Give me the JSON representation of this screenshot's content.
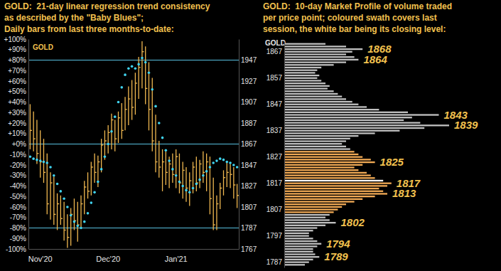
{
  "chart_data": [
    {
      "type": "hlc",
      "title": "GOLD:  21-day linear regression trend consistency",
      "subtitle": [
        "as described by the \"Baby Blues\";",
        "Daily bars from last three months-to-date:"
      ],
      "label": "GOLD",
      "categories": [
        null,
        null,
        null,
        "Nov'20",
        null,
        null,
        null,
        null,
        null,
        null,
        null,
        null,
        null,
        null,
        null,
        null,
        null,
        null,
        null,
        null,
        null,
        null,
        null,
        "Dec'20",
        null,
        null,
        null,
        null,
        null,
        null,
        null,
        null,
        null,
        null,
        null,
        null,
        null,
        null,
        null,
        null,
        null,
        null,
        null,
        "Jan'21",
        null,
        null,
        null,
        null,
        null,
        null,
        null,
        null,
        null,
        null,
        null,
        null,
        null,
        null,
        null,
        null,
        null,
        null
      ],
      "series": [
        {
          "type": "hlc",
          "axis": "y2",
          "color": "#f0b850",
          "high": [
            1905,
            1898,
            1890,
            1880,
            1872,
            1858,
            1840,
            1836,
            1820,
            1818,
            1812,
            1800,
            1806,
            1815,
            1812,
            1818,
            1832,
            1840,
            1850,
            1858,
            1856,
            1872,
            1880,
            1885,
            1896,
            1890,
            1898,
            1906,
            1912,
            1922,
            1928,
            1935,
            1950,
            1965,
            1960,
            1945,
            1930,
            1895,
            1870,
            1862,
            1860,
            1855,
            1858,
            1862,
            1858,
            1850,
            1845,
            1840,
            1850,
            1855,
            1852,
            1860,
            1858,
            1855,
            1835,
            1818,
            1830,
            1842,
            1850,
            1848,
            1845,
            1829
          ],
          "low": [
            1862,
            1860,
            1848,
            1835,
            1830,
            1800,
            1795,
            1790,
            1785,
            1790,
            1775,
            1768,
            1770,
            1785,
            1774,
            1788,
            1800,
            1815,
            1818,
            1830,
            1826,
            1840,
            1852,
            1858,
            1862,
            1860,
            1868,
            1872,
            1880,
            1885,
            1890,
            1895,
            1910,
            1920,
            1905,
            1880,
            1860,
            1840,
            1835,
            1822,
            1828,
            1825,
            1830,
            1825,
            1820,
            1815,
            1812,
            1808,
            1820,
            1822,
            1825,
            1830,
            1822,
            1800,
            1785,
            1785,
            1805,
            1818,
            1826,
            1825,
            1815,
            1806
          ],
          "close": [
            1880,
            1872,
            1858,
            1850,
            1840,
            1810,
            1830,
            1800,
            1810,
            1796,
            1785,
            1778,
            1800,
            1794,
            1790,
            1810,
            1826,
            1822,
            1845,
            1840,
            1850,
            1866,
            1870,
            1878,
            1890,
            1872,
            1892,
            1880,
            1900,
            1910,
            1902,
            1925,
            1940,
            1955,
            1920,
            1900,
            1870,
            1850,
            1845,
            1850,
            1840,
            1848,
            1838,
            1855,
            1830,
            1842,
            1825,
            1832,
            1845,
            1830,
            1848,
            1840,
            1850,
            1815,
            1790,
            1810,
            1825,
            1835,
            1840,
            1838,
            1828,
            1818
          ]
        },
        {
          "type": "scatter",
          "marker": "circle",
          "color": "#40d4f0",
          "values": [
            -12,
            -14,
            -15,
            -16,
            -17,
            -18,
            -22,
            -30,
            -38,
            -45,
            -52,
            -60,
            -68,
            -74,
            -78,
            -80,
            -74,
            -66,
            -56,
            -46,
            -36,
            -24,
            -12,
            0,
            12,
            26,
            40,
            54,
            66,
            72,
            74,
            72,
            76,
            82,
            78,
            68,
            52,
            36,
            20,
            6,
            -6,
            -16,
            -24,
            -30,
            -36,
            -40,
            -44,
            -46,
            -42,
            -38,
            -34,
            -30,
            -26,
            -22,
            -18,
            -16,
            -14,
            -15,
            -17,
            -18,
            -20,
            -22
          ]
        }
      ],
      "hlines": [
        80,
        0,
        -80
      ],
      "ylim": [
        -100,
        100
      ],
      "yticks": [
        {
          "value": 100,
          "label": "+100%"
        },
        {
          "value": 90,
          "label": "+90%"
        },
        {
          "value": 80,
          "label": "+80%"
        },
        {
          "value": 70,
          "label": "+70%"
        },
        {
          "value": 60,
          "label": "+60%"
        },
        {
          "value": 50,
          "label": "+50%"
        },
        {
          "value": 40,
          "label": "+40%"
        },
        {
          "value": 30,
          "label": "+30%"
        },
        {
          "value": 20,
          "label": "+20%"
        },
        {
          "value": 10,
          "label": "+10%"
        },
        {
          "value": 0,
          "label": "+0%"
        },
        {
          "value": -10,
          "label": "-10%"
        },
        {
          "value": -20,
          "label": "-20%"
        },
        {
          "value": -30,
          "label": "-30%"
        },
        {
          "value": -40,
          "label": "-40%"
        },
        {
          "value": -50,
          "label": "-50%"
        },
        {
          "value": -60,
          "label": "-60%"
        },
        {
          "value": -70,
          "label": "-70%"
        },
        {
          "value": -80,
          "label": "-80%"
        },
        {
          "value": -90,
          "label": "-90%"
        },
        {
          "value": -100,
          "label": "-100%"
        }
      ],
      "y2lim": [
        1767,
        1967
      ],
      "y2ticks": [
        1767,
        1787,
        1807,
        1827,
        1847,
        1867,
        1887,
        1907,
        1927,
        1947
      ],
      "grid": false
    },
    {
      "type": "bar",
      "orientation": "horizontal",
      "title": "GOLD:  10-day Market Profile of volume traded",
      "subtitle": [
        "per price point; coloured swath covers last",
        "session, the white bar being its closing level:"
      ],
      "label": "GOLD",
      "y": [
        1786,
        1787,
        1788,
        1789,
        1790,
        1791,
        1792,
        1793,
        1794,
        1795,
        1796,
        1797,
        1798,
        1799,
        1800,
        1801,
        1802,
        1803,
        1804,
        1805,
        1806,
        1807,
        1808,
        1809,
        1810,
        1811,
        1812,
        1813,
        1814,
        1815,
        1816,
        1817,
        1818,
        1819,
        1820,
        1821,
        1822,
        1823,
        1824,
        1825,
        1826,
        1827,
        1828,
        1829,
        1830,
        1831,
        1832,
        1833,
        1834,
        1835,
        1836,
        1837,
        1838,
        1839,
        1840,
        1841,
        1842,
        1843,
        1844,
        1845,
        1846,
        1847,
        1848,
        1849,
        1850,
        1851,
        1852,
        1853,
        1854,
        1855,
        1856,
        1857,
        1858,
        1859,
        1860,
        1861,
        1862,
        1863,
        1864,
        1865,
        1866,
        1867,
        1868,
        1869,
        1870
      ],
      "values": [
        10,
        12,
        14,
        17,
        15,
        14,
        14,
        16,
        18,
        16,
        14,
        12,
        12,
        14,
        16,
        20,
        25,
        22,
        20,
        22,
        24,
        26,
        28,
        30,
        34,
        38,
        44,
        50,
        48,
        46,
        50,
        52,
        48,
        44,
        42,
        40,
        36,
        34,
        38,
        44,
        42,
        38,
        36,
        34,
        32,
        30,
        28,
        30,
        32,
        36,
        44,
        56,
        68,
        80,
        66,
        58,
        62,
        75,
        60,
        46,
        40,
        36,
        33,
        30,
        28,
        26,
        24,
        21,
        22,
        20,
        18,
        16,
        17,
        15,
        16,
        18,
        24,
        30,
        36,
        34,
        30,
        33,
        38,
        30,
        20
      ],
      "colors": [
        "#c0c0c0",
        "#c0c0c0",
        "#c0c0c0",
        "#c0c0c0",
        "#c0c0c0",
        "#c0c0c0",
        "#c0c0c0",
        "#c0c0c0",
        "#c0c0c0",
        "#c0c0c0",
        "#c0c0c0",
        "#c0c0c0",
        "#c0c0c0",
        "#c0c0c0",
        "#c0c0c0",
        "#c0c0c0",
        "#c0c0c0",
        "#c0c0c0",
        "#c0c0c0",
        "#c0c0c0",
        "#f2aa55",
        "#f2aa55",
        "#f2aa55",
        "#f2aa55",
        "#f2aa55",
        "#f2aa55",
        "#f2aa55",
        "#f2aa55",
        "#f2aa55",
        "#f2aa55",
        "#f2aa55",
        "#f2aa55",
        "#ffffff",
        "#f2aa55",
        "#f2aa55",
        "#f2aa55",
        "#f2aa55",
        "#f2aa55",
        "#f2aa55",
        "#f2aa55",
        "#f2aa55",
        "#f2aa55",
        "#f2aa55",
        "#f2aa55",
        "#c0c0c0",
        "#c0c0c0",
        "#c0c0c0",
        "#c0c0c0",
        "#c0c0c0",
        "#c0c0c0",
        "#c0c0c0",
        "#c0c0c0",
        "#c0c0c0",
        "#c0c0c0",
        "#c0c0c0",
        "#c0c0c0",
        "#c0c0c0",
        "#c0c0c0",
        "#c0c0c0",
        "#c0c0c0",
        "#c0c0c0",
        "#c0c0c0",
        "#c0c0c0",
        "#c0c0c0",
        "#c0c0c0",
        "#c0c0c0",
        "#c0c0c0",
        "#c0c0c0",
        "#c0c0c0",
        "#c0c0c0",
        "#c0c0c0",
        "#c0c0c0",
        "#c0c0c0",
        "#c0c0c0",
        "#c0c0c0",
        "#c0c0c0",
        "#c0c0c0",
        "#c0c0c0",
        "#c0c0c0",
        "#c0c0c0",
        "#c0c0c0",
        "#c0c0c0",
        "#c0c0c0",
        "#c0c0c0",
        "#c0c0c0"
      ],
      "annotations": [
        1868,
        1864,
        1843,
        1839,
        1825,
        1817,
        1813,
        1802,
        1794,
        1789
      ],
      "xlim": [
        0,
        100
      ],
      "ylim": [
        1785,
        1871
      ],
      "yticks": [
        1787,
        1797,
        1807,
        1817,
        1827,
        1837,
        1847,
        1857,
        1867
      ],
      "tick_labels": "y"
    }
  ]
}
